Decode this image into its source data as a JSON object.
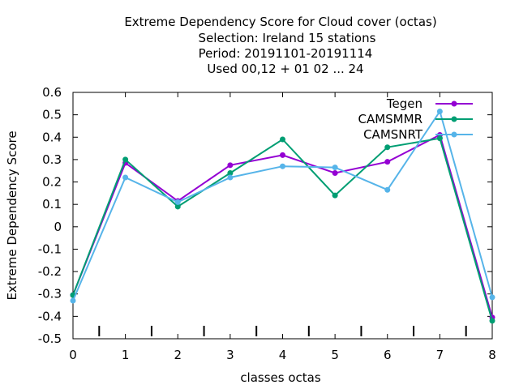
{
  "chart_data": {
    "type": "line",
    "title_lines": [
      "Extreme Dependency Score  for Cloud cover (octas)",
      "Selection: Ireland     15 stations",
      "Period: 20191101-20191114",
      "Used  00,12  + 01 02 ... 24"
    ],
    "xlabel": "classes octas",
    "ylabel": "Extreme Dependency Score",
    "x": [
      0,
      1,
      2,
      3,
      4,
      5,
      6,
      7,
      8
    ],
    "xlim": [
      0,
      8
    ],
    "ylim": [
      -0.5,
      0.6
    ],
    "xticks": [
      "0",
      "1",
      "2",
      "3",
      "4",
      "5",
      "6",
      "7",
      "8"
    ],
    "yticks": [
      "-0.5",
      "-0.4",
      "-0.3",
      "-0.2",
      "-0.1",
      "0",
      "0.1",
      "0.2",
      "0.3",
      "0.4",
      "0.5",
      "0.6"
    ],
    "minor_xticks": [
      0.5,
      1.5,
      2.5,
      3.5,
      4.5,
      5.5,
      6.5,
      7.5
    ],
    "grid": false,
    "legend_position": "top-right",
    "series": [
      {
        "name": "Tegen",
        "color": "#9400d3",
        "values": [
          -0.305,
          0.285,
          0.115,
          0.275,
          0.32,
          0.24,
          0.29,
          0.41,
          -0.405
        ]
      },
      {
        "name": "CAMSMMR",
        "color": "#009e73",
        "values": [
          -0.305,
          0.3,
          0.09,
          0.24,
          0.39,
          0.14,
          0.355,
          0.395,
          -0.42
        ]
      },
      {
        "name": "CAMSNRT",
        "color": "#56b4e9",
        "values": [
          -0.33,
          0.22,
          0.11,
          0.22,
          0.27,
          0.265,
          0.165,
          0.515,
          -0.315
        ]
      }
    ]
  }
}
